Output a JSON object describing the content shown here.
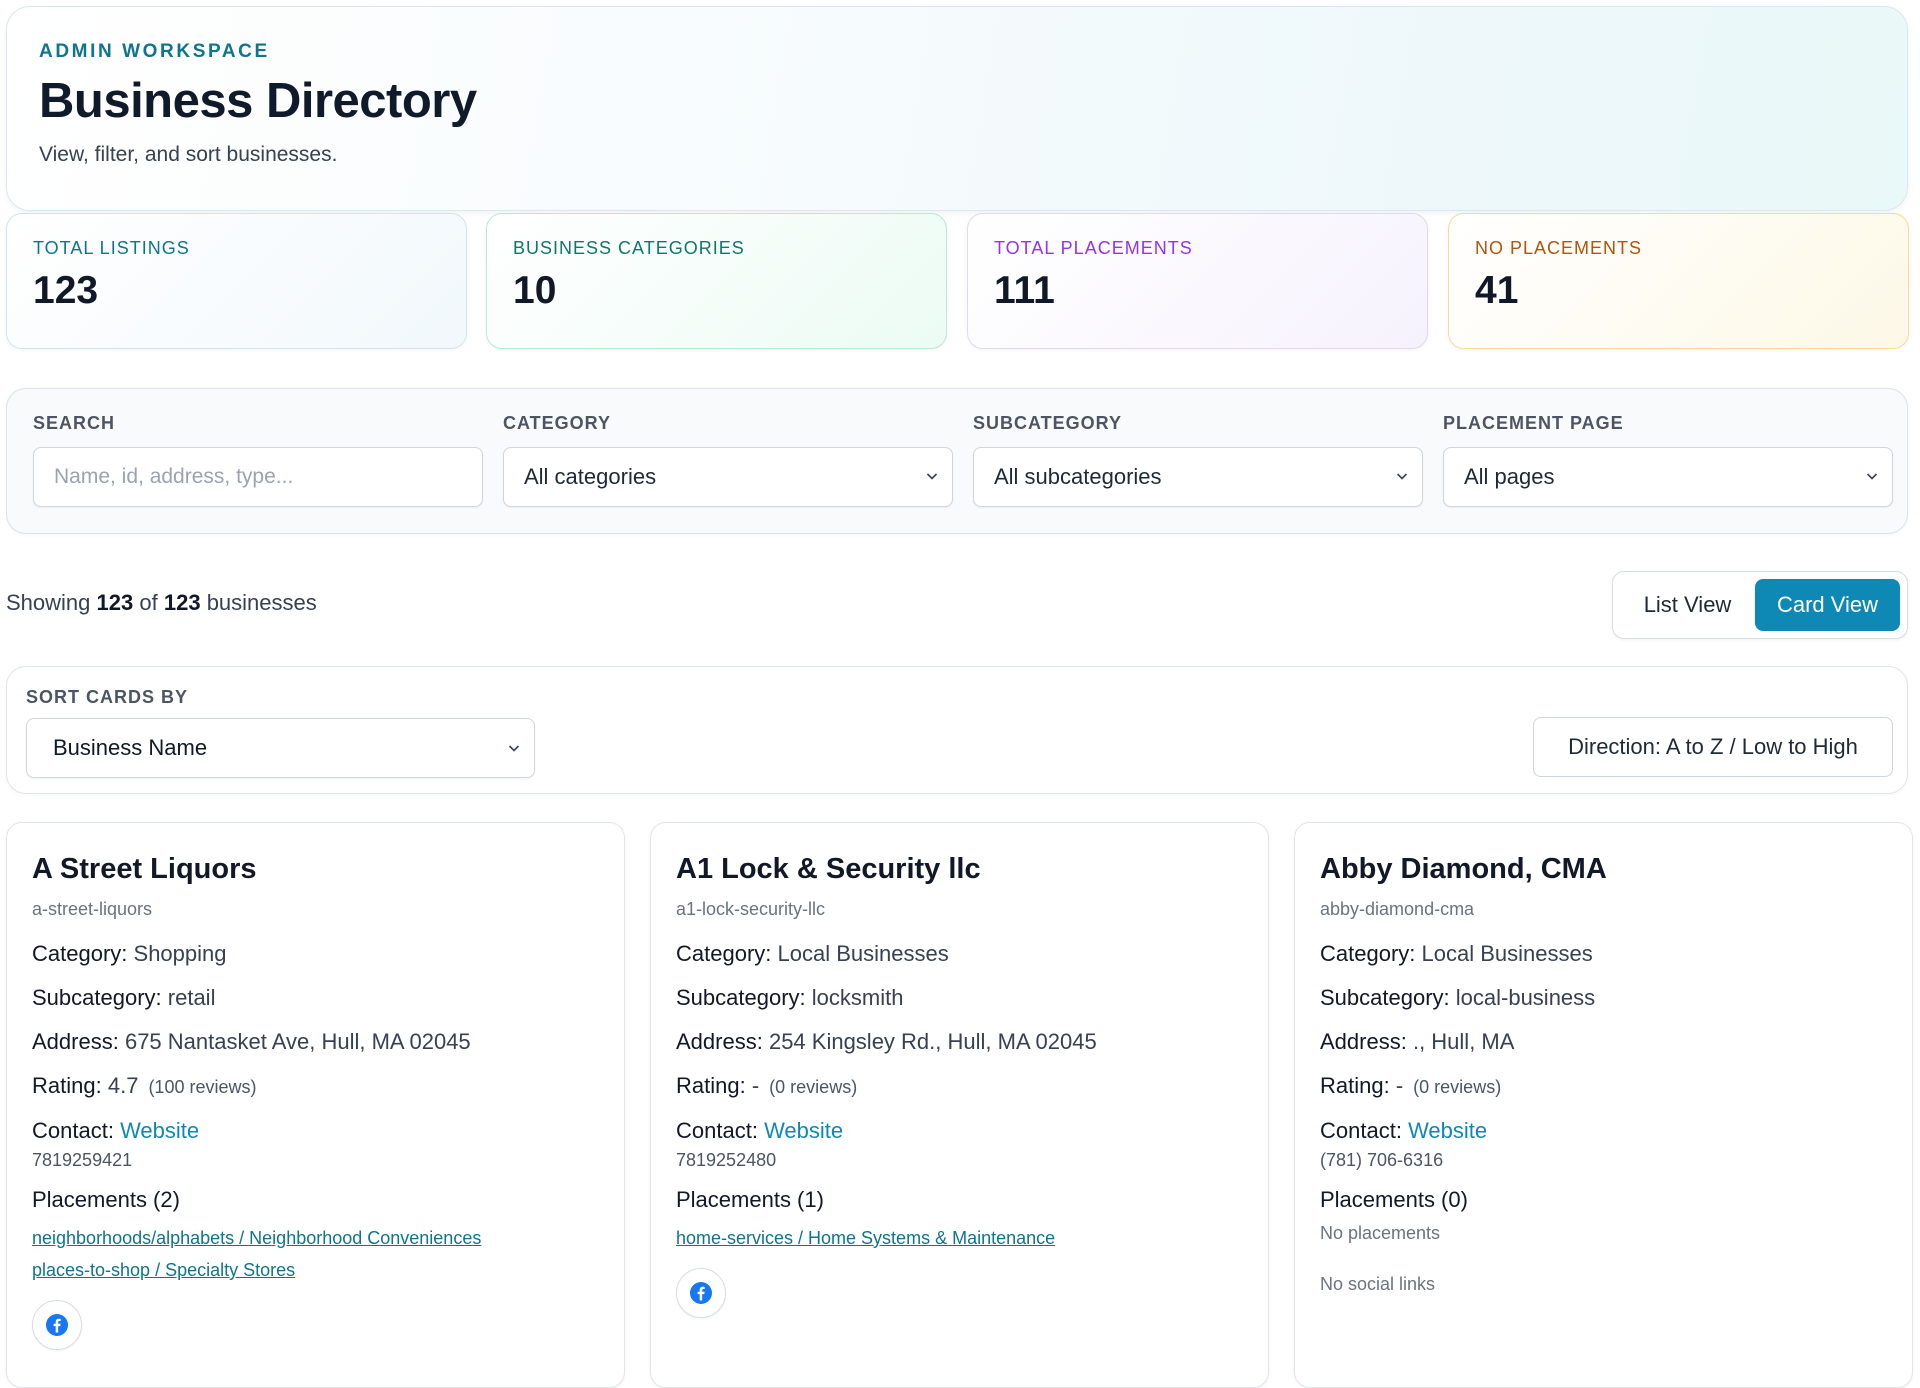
{
  "header": {
    "eyebrow": "ADMIN WORKSPACE",
    "title": "Business Directory",
    "subtitle": "View, filter, and sort businesses."
  },
  "stats": [
    {
      "label": "TOTAL LISTINGS",
      "value": "123",
      "color": "#0e7490"
    },
    {
      "label": "BUSINESS CATEGORIES",
      "value": "10",
      "color": "#0f766e"
    },
    {
      "label": "TOTAL PLACEMENTS",
      "value": "111",
      "color": "#9333ea"
    },
    {
      "label": "NO PLACEMENTS",
      "value": "41",
      "color": "#b45309"
    }
  ],
  "filters": {
    "search": {
      "label": "SEARCH",
      "placeholder": "Name, id, address, type..."
    },
    "category": {
      "label": "CATEGORY",
      "value": "All categories"
    },
    "subcategory": {
      "label": "SUBCATEGORY",
      "value": "All subcategories"
    },
    "placement_page": {
      "label": "PLACEMENT PAGE",
      "value": "All pages"
    }
  },
  "summary": {
    "prefix": "Showing",
    "shown": "123",
    "of": "of",
    "total": "123",
    "suffix": "businesses"
  },
  "view_toggle": {
    "list_label": "List View",
    "card_label": "Card View",
    "active": "Card View",
    "accent": "#0e89b5"
  },
  "sort": {
    "label": "SORT CARDS BY",
    "value": "Business Name",
    "direction_label": "Direction: A to Z / Low to High"
  },
  "labels": {
    "category": "Category:",
    "subcategory": "Subcategory:",
    "address": "Address:",
    "rating": "Rating:",
    "contact": "Contact:"
  },
  "businesses": [
    {
      "name": "A Street Liquors",
      "slug": "a-street-liquors",
      "category": "Shopping",
      "subcategory": "retail",
      "address": "675 Nantasket Ave, Hull, MA 02045",
      "rating": "4.7",
      "reviews": "(100 reviews)",
      "contact_link": "Website",
      "phone": "7819259421",
      "placements_title": "Placements (2)",
      "placements": [
        "neighborhoods/alphabets / Neighborhood Conveniences",
        "places-to-shop / Specialty Stores"
      ],
      "social_icon": "facebook-icon"
    },
    {
      "name": "A1 Lock & Security llc",
      "slug": "a1-lock-security-llc",
      "category": "Local Businesses",
      "subcategory": "locksmith",
      "address": "254 Kingsley Rd., Hull, MA 02045",
      "rating": "-",
      "reviews": "(0 reviews)",
      "contact_link": "Website",
      "phone": "7819252480",
      "placements_title": "Placements (1)",
      "placements": [
        "home-services / Home Systems & Maintenance"
      ],
      "social_icon": "facebook-icon"
    },
    {
      "name": "Abby Diamond, CMA",
      "slug": "abby-diamond-cma",
      "category": "Local Businesses",
      "subcategory": "local-business",
      "address": "., Hull, MA",
      "rating": "-",
      "reviews": "(0 reviews)",
      "contact_link": "Website",
      "phone": "(781) 706-6316",
      "placements_title": "Placements (0)",
      "no_placements": "No placements",
      "no_social": "No social links"
    }
  ]
}
